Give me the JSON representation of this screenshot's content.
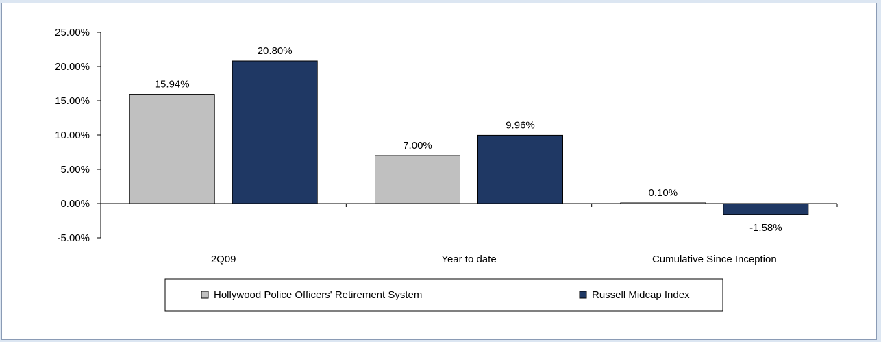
{
  "chart_data": {
    "type": "bar",
    "categories": [
      "2Q09",
      "Year to date",
      "Cumulative Since Inception"
    ],
    "series": [
      {
        "name": "Hollywood Police Officers' Retirement System",
        "values": [
          15.94,
          7.0,
          0.1
        ],
        "labels": [
          "15.94%",
          "7.00%",
          "0.10%"
        ],
        "color": "#c0c0c0"
      },
      {
        "name": "Russell Midcap Index",
        "values": [
          20.8,
          9.96,
          -1.58
        ],
        "labels": [
          "20.80%",
          "9.96%",
          "-1.58%"
        ],
        "color": "#1f3864"
      }
    ],
    "yticks": [
      25,
      20,
      15,
      10,
      5,
      0,
      -5
    ],
    "ytick_labels": [
      "25.00%",
      "20.00%",
      "15.00%",
      "10.00%",
      "5.00%",
      "0.00%",
      "-5.00%"
    ],
    "ylim": [
      -5,
      25
    ],
    "grid": false,
    "legend": "bottom-center",
    "title": "",
    "xlabel": "",
    "ylabel": ""
  }
}
